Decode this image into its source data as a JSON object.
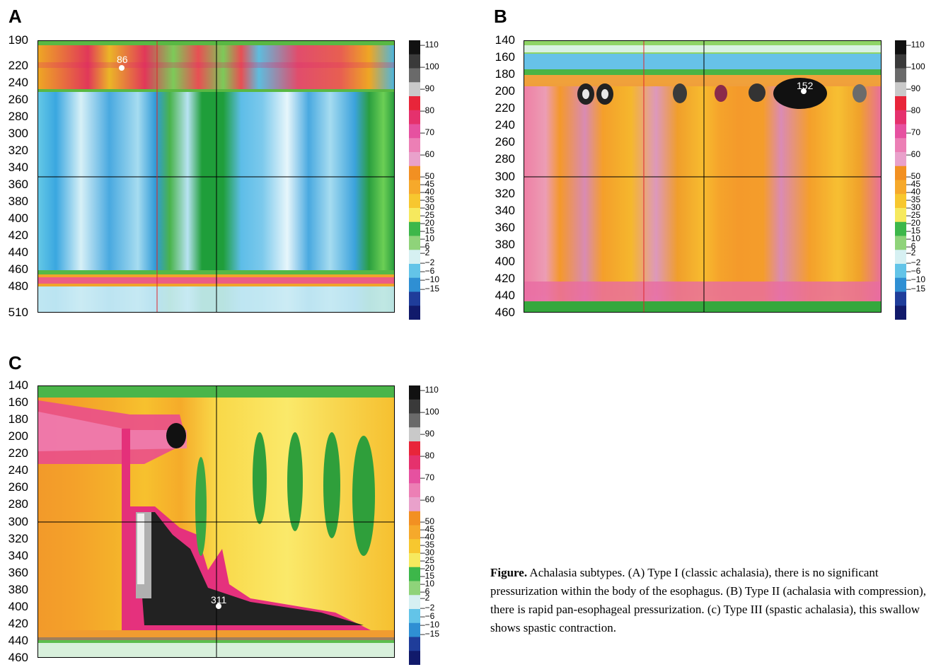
{
  "chart_data": [
    {
      "panel": "A",
      "type": "heatmap",
      "y_ticks": [
        "190",
        "220",
        "240",
        "260",
        "280",
        "300",
        "320",
        "340",
        "360",
        "380",
        "400",
        "420",
        "440",
        "460",
        "480",
        "510"
      ],
      "peak_label": "86",
      "colorbar_ticks": [
        "110",
        "100",
        "90",
        "80",
        "70",
        "60",
        "50",
        "45",
        "40",
        "35",
        "30",
        "25",
        "20",
        "15",
        "10",
        "6",
        "2",
        "−2",
        "−6",
        "−10",
        "−15"
      ]
    },
    {
      "panel": "B",
      "type": "heatmap",
      "y_ticks": [
        "140",
        "160",
        "180",
        "200",
        "220",
        "240",
        "260",
        "280",
        "300",
        "320",
        "340",
        "360",
        "380",
        "400",
        "420",
        "440",
        "460"
      ],
      "peak_label": "152",
      "colorbar_ticks": [
        "110",
        "100",
        "90",
        "80",
        "70",
        "60",
        "50",
        "45",
        "40",
        "35",
        "30",
        "25",
        "20",
        "15",
        "10",
        "6",
        "2",
        "−2",
        "−6",
        "−10",
        "−15"
      ]
    },
    {
      "panel": "C",
      "type": "heatmap",
      "y_ticks": [
        "140",
        "160",
        "180",
        "200",
        "220",
        "240",
        "260",
        "280",
        "300",
        "320",
        "340",
        "360",
        "380",
        "400",
        "420",
        "440",
        "460"
      ],
      "peak_label": "311",
      "colorbar_ticks": [
        "110",
        "100",
        "90",
        "80",
        "70",
        "60",
        "50",
        "45",
        "40",
        "35",
        "30",
        "25",
        "20",
        "15",
        "10",
        "6",
        "2",
        "−2",
        "−6",
        "−10",
        "−15"
      ]
    }
  ],
  "caption": {
    "bold": "Figure.",
    "text": " Achalasia subtypes. (A) Type I (classic achalasia), there is no significant pressurization within the body of the esophagus. (B) Type II (achalasia with compression), there is rapid pan-esophageal pressurization. (c) Type III (spastic achalasia), this swallow shows spastic contraction."
  }
}
